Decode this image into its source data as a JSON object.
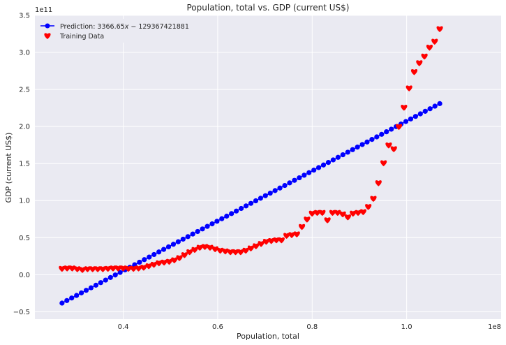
{
  "chart_data": {
    "type": "scatter",
    "title": "Population, total vs. GDP (current US$)",
    "xlabel": "Population, total",
    "ylabel": "GDP (current US$)",
    "x_offset_label": "1e8",
    "y_offset_label": "1e11",
    "xlim": [
      0.213,
      1.2
    ],
    "ylim": [
      -0.6,
      3.5
    ],
    "x_ticks": [
      0.4,
      0.6,
      0.8,
      1.0
    ],
    "x_tick_labels": [
      "0.4",
      "0.6",
      "0.8",
      "1.0"
    ],
    "y_ticks": [
      -0.5,
      0.0,
      0.5,
      1.0,
      1.5,
      2.0,
      2.5,
      3.0,
      3.5
    ],
    "y_tick_labels": [
      "−0.5",
      "0.0",
      "0.5",
      "1.0",
      "1.5",
      "2.0",
      "2.5",
      "3.0",
      "3.5"
    ],
    "grid": true,
    "legend_position": "top-left",
    "series": [
      {
        "name": "Prediction: 3366.65x − 129367421881",
        "legend_math": {
          "prefix": "Prediction: ",
          "coef": "3366.65",
          "var": "x",
          "rest": " − 129367421881"
        },
        "kind": "line-markers",
        "color": "#0000ff",
        "x_start": 0.2704,
        "x_end": 1.0701,
        "count": 79,
        "slope": 3.36665,
        "intercept": -1.29367421881
      },
      {
        "name": "Training Data",
        "kind": "hearts",
        "color": "#ff0000",
        "x_start": 0.2704,
        "x_end": 1.0701,
        "values": [
          0.085,
          0.09,
          0.09,
          0.08,
          0.07,
          0.08,
          0.08,
          0.08,
          0.08,
          0.085,
          0.09,
          0.09,
          0.09,
          0.085,
          0.085,
          0.09,
          0.1,
          0.12,
          0.14,
          0.16,
          0.17,
          0.18,
          0.2,
          0.23,
          0.27,
          0.31,
          0.34,
          0.37,
          0.38,
          0.37,
          0.35,
          0.33,
          0.32,
          0.31,
          0.31,
          0.31,
          0.33,
          0.36,
          0.39,
          0.42,
          0.45,
          0.46,
          0.47,
          0.47,
          0.53,
          0.54,
          0.55,
          0.65,
          0.75,
          0.83,
          0.84,
          0.84,
          0.74,
          0.84,
          0.84,
          0.82,
          0.78,
          0.83,
          0.84,
          0.85,
          0.92,
          1.03,
          1.24,
          1.51,
          1.75,
          1.7,
          2.0,
          2.26,
          2.52,
          2.74,
          2.86,
          2.95,
          3.07,
          3.15,
          3.32
        ]
      }
    ]
  }
}
